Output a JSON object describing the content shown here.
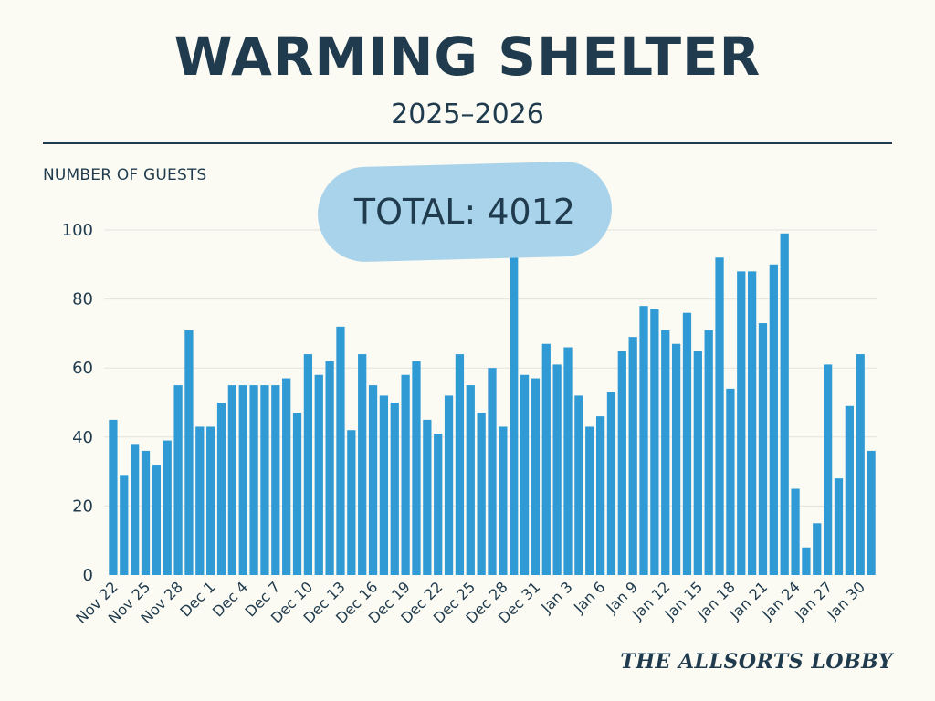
{
  "header": {
    "title": "WARMING SHELTER",
    "subtitle": "2025–2026"
  },
  "badge": {
    "total_text": "TOTAL: 4012"
  },
  "footer": {
    "brand": "THE ALLSORTS LOBBY"
  },
  "colors": {
    "bar": "#2f9ad4",
    "text": "#1f3b4d",
    "badge": "#a9d3ea",
    "background": "#fbfaf3",
    "grid": "#e3e3dc"
  },
  "chart_data": {
    "type": "bar",
    "title": "WARMING SHELTER",
    "subtitle": "2025–2026",
    "ylabel": "NUMBER OF GUESTS",
    "xlabel": "",
    "ylim": [
      0,
      100
    ],
    "yticks": [
      0,
      20,
      40,
      60,
      80,
      100
    ],
    "grid": true,
    "categories": [
      "Nov 22",
      "Nov 23",
      "Nov 24",
      "Nov 25",
      "Nov 26",
      "Nov 27",
      "Nov 28",
      "Nov 29",
      "Nov 30",
      "Dec 1",
      "Dec 2",
      "Dec 3",
      "Dec 4",
      "Dec 5",
      "Dec 6",
      "Dec 7",
      "Dec 8",
      "Dec 9",
      "Dec 10",
      "Dec 11",
      "Dec 12",
      "Dec 13",
      "Dec 14",
      "Dec 15",
      "Dec 16",
      "Dec 17",
      "Dec 18",
      "Dec 19",
      "Dec 20",
      "Dec 21",
      "Dec 22",
      "Dec 23",
      "Dec 24",
      "Dec 25",
      "Dec 26",
      "Dec 27",
      "Dec 28",
      "Dec 29",
      "Dec 30",
      "Dec 31",
      "Jan 1",
      "Jan 2",
      "Jan 3",
      "Jan 4",
      "Jan 5",
      "Jan 6",
      "Jan 7",
      "Jan 8",
      "Jan 9",
      "Jan 10",
      "Jan 11",
      "Jan 12",
      "Jan 13",
      "Jan 14",
      "Jan 15",
      "Jan 16",
      "Jan 17",
      "Jan 18",
      "Jan 19",
      "Jan 20",
      "Jan 21",
      "Jan 22",
      "Jan 23",
      "Jan 24",
      "Jan 25",
      "Jan 26",
      "Jan 27",
      "Jan 28",
      "Jan 29",
      "Jan 30",
      "Jan 31"
    ],
    "values": [
      45,
      29,
      38,
      36,
      32,
      39,
      55,
      71,
      43,
      43,
      50,
      55,
      55,
      55,
      55,
      55,
      57,
      47,
      64,
      58,
      62,
      72,
      42,
      64,
      55,
      52,
      50,
      58,
      62,
      45,
      41,
      52,
      64,
      55,
      47,
      60,
      43,
      94,
      58,
      57,
      67,
      61,
      66,
      52,
      43,
      46,
      53,
      65,
      69,
      78,
      77,
      71,
      67,
      76,
      65,
      71,
      92,
      54,
      88,
      88,
      73,
      90,
      99,
      25,
      8,
      15,
      61,
      28,
      49,
      64,
      36
    ],
    "tick_labels": [
      "Nov 22",
      "Nov 25",
      "Nov 28",
      "Dec 1",
      "Dec 4",
      "Dec 7",
      "Dec 10",
      "Dec 13",
      "Dec 16",
      "Dec 19",
      "Dec 22",
      "Dec 25",
      "Dec 28",
      "Dec 31",
      "Jan 3",
      "Jan 6",
      "Jan 9",
      "Jan 12",
      "Jan 15",
      "Jan 18",
      "Jan 21",
      "Jan 24",
      "Jan 27",
      "Jan 30"
    ],
    "annotation": "TOTAL: 4012"
  }
}
